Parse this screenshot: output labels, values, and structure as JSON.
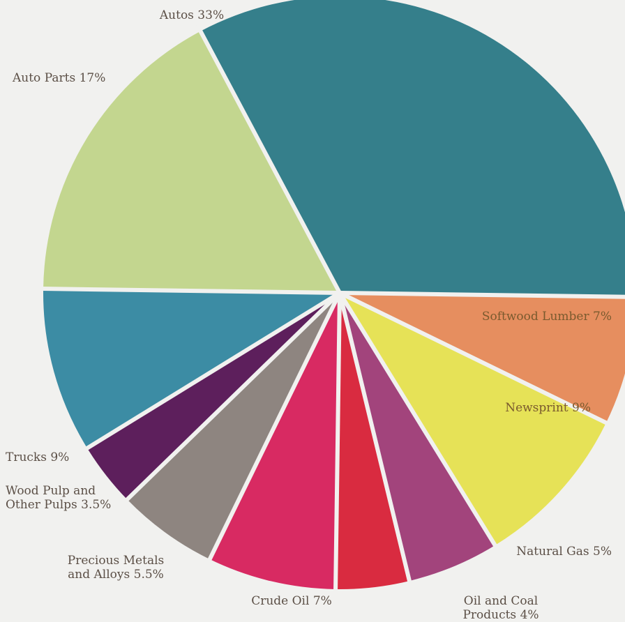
{
  "chart_data": {
    "type": "pie",
    "title": "",
    "slices": [
      {
        "label": "Autos 33%",
        "value": 33,
        "color": "#357f8b"
      },
      {
        "label": "Softwood Lumber 7%",
        "value": 7,
        "color": "#e68e5f"
      },
      {
        "label": "Newsprint 9%",
        "value": 9,
        "color": "#e6e257"
      },
      {
        "label": "Natural Gas 5%",
        "value": 5,
        "color": "#a2447c"
      },
      {
        "label": "Oil and Coal Products 4%",
        "value": 4,
        "color": "#d92b40"
      },
      {
        "label": "Crude Oil 7%",
        "value": 7,
        "color": "#d82a62"
      },
      {
        "label": "Precious Metals\nand Alloys 5.5%",
        "value": 5.5,
        "color": "#8e8580"
      },
      {
        "label": "Wood Pulp and\nOther Pulps 3.5%",
        "value": 3.5,
        "color": "#5d1f5c"
      },
      {
        "label": "Trucks 9%",
        "value": 9,
        "color": "#3c8ca4"
      },
      {
        "label": "Auto Parts 17%",
        "value": 17,
        "color": "#c3d68f"
      }
    ],
    "label_colors": {
      "outside": "#5b4f46",
      "inside": "#7a5a2e"
    }
  }
}
